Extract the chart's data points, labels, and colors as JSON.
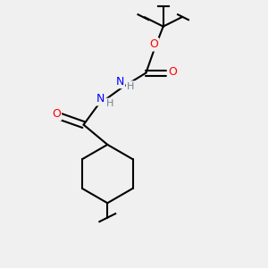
{
  "background_color": "#f0f0f0",
  "bond_color": "#000000",
  "bond_width": 1.5,
  "atom_colors": {
    "O": "#ff0000",
    "N": "#0000ff",
    "H": "#708090",
    "C": "#000000"
  },
  "font_size_atoms": 9,
  "font_size_H": 8
}
